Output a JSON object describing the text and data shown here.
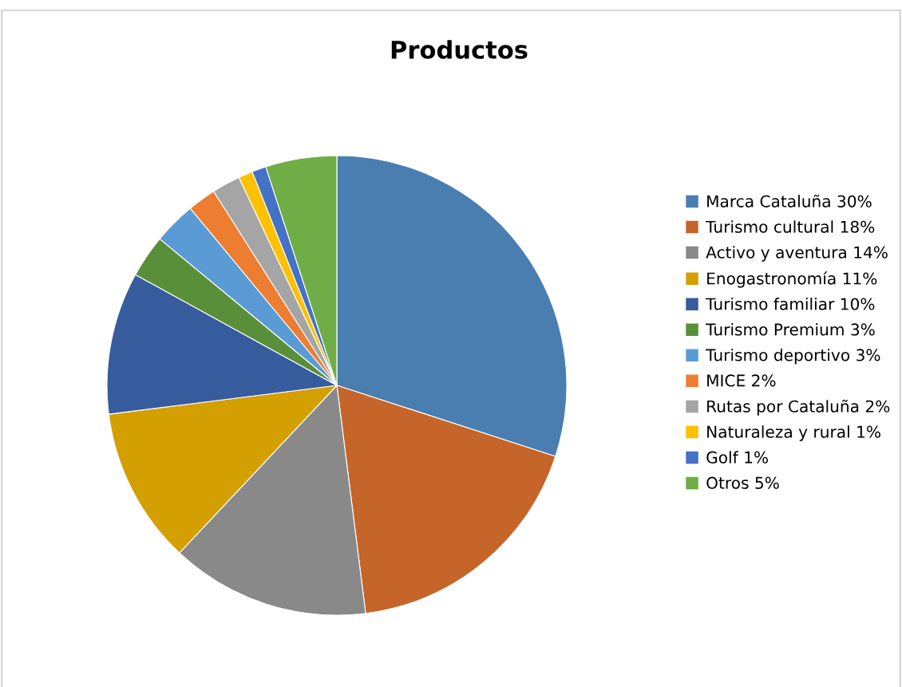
{
  "chart_data": {
    "type": "pie",
    "title": "Productos",
    "categories": [
      "Marca Cataluña 30%",
      "Turismo cultural 18%",
      "Activo y aventura 14%",
      "Enogastronomía 11%",
      "Turismo familiar 10%",
      "Turismo Premium 3%",
      "Turismo deportivo 3%",
      "MICE 2%",
      "Rutas por Cataluña 2%",
      "Naturaleza y rural 1%",
      "Golf 1%",
      "Otros 5%"
    ],
    "values": [
      30,
      18,
      14,
      11,
      10,
      3,
      3,
      2,
      2,
      1,
      1,
      5
    ],
    "colors": [
      "#4a7eb0",
      "#c5652a",
      "#898989",
      "#d49f00",
      "#375c9e",
      "#5a8f3a",
      "#5b9bd5",
      "#ed7d31",
      "#a5a5a5",
      "#ffc000",
      "#4472c4",
      "#70ad47"
    ],
    "legend": "right"
  }
}
